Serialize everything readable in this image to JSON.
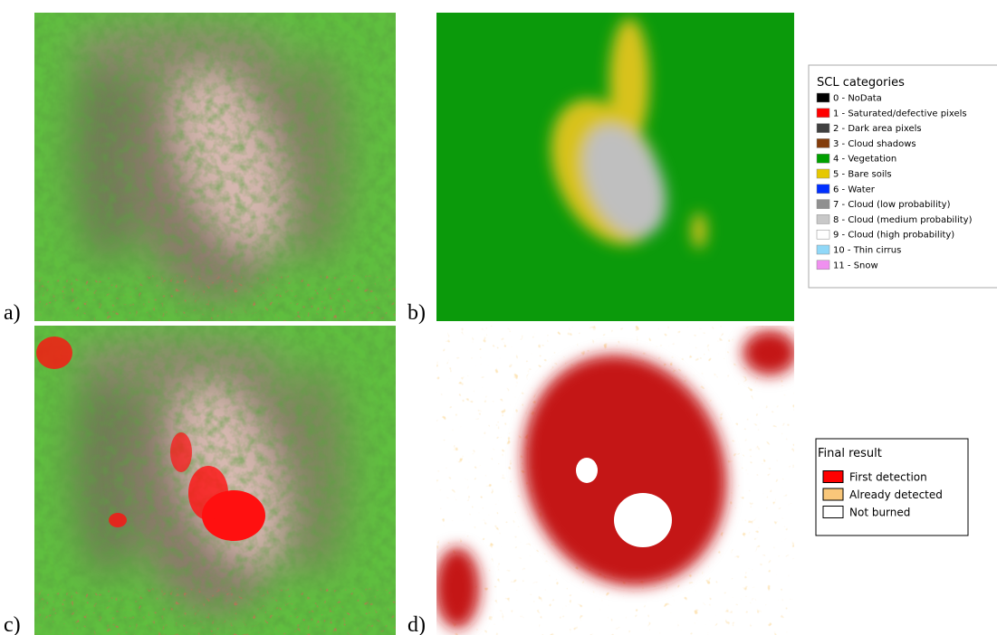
{
  "panels": [
    {
      "label": "a)"
    },
    {
      "label": "b)"
    },
    {
      "label": "c)"
    },
    {
      "label": "d)"
    }
  ],
  "scl_legend": {
    "title": "SCL categories",
    "entries": [
      {
        "label": "0 - NoData",
        "color": "#000000"
      },
      {
        "label": "1 - Saturated/defective pixels",
        "color": "#ff0000"
      },
      {
        "label": "2 - Dark area pixels",
        "color": "#404040"
      },
      {
        "label": "3 - Cloud shadows",
        "color": "#833c0b"
      },
      {
        "label": "4 - Vegetation",
        "color": "#00a000"
      },
      {
        "label": "5 - Bare soils",
        "color": "#e6c800"
      },
      {
        "label": "6 - Water",
        "color": "#0030ff"
      },
      {
        "label": "7 - Cloud (low probability)",
        "color": "#909090"
      },
      {
        "label": "8 - Cloud (medium probability)",
        "color": "#c8c8c8"
      },
      {
        "label": "9 - Cloud (high probability)",
        "color": "#ffffff"
      },
      {
        "label": "10 - Thin cirrus",
        "color": "#90d8f8"
      },
      {
        "label": "11 - Snow",
        "color": "#f090f0"
      }
    ]
  },
  "result_legend": {
    "title": "Final result",
    "entries": [
      {
        "label": "First detection",
        "color": "#ff0000"
      },
      {
        "label": "Already detected",
        "color": "#f9c77a"
      },
      {
        "label": "Not burned",
        "color": "#ffffff"
      }
    ]
  }
}
